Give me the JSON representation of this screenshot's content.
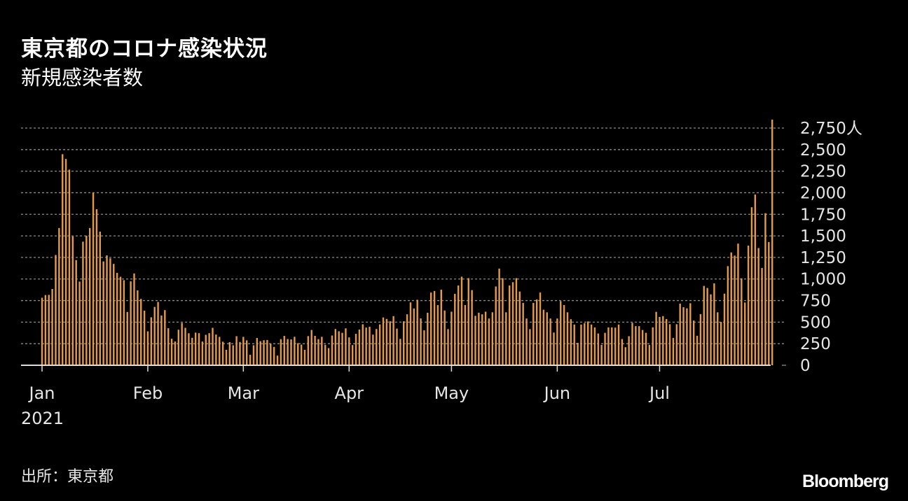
{
  "title": "東京都のコロナ感染状況",
  "subtitle": "新規感染者数",
  "source": "出所：東京都",
  "brand": "Bloomberg",
  "colors": {
    "bar": "#e39b48",
    "grid": "#8c8c8c",
    "axis": "#dddddd",
    "text": "#e6e6e6",
    "background": "#000000"
  },
  "chart_data": {
    "type": "bar",
    "start_date": "2021-01-01",
    "end_date": "2021-07-28",
    "year_label": "2021",
    "ylim": [
      0,
      2750
    ],
    "grid": true,
    "y_ticks": [
      {
        "value": 0,
        "label": "0"
      },
      {
        "value": 250,
        "label": "250"
      },
      {
        "value": 500,
        "label": "500"
      },
      {
        "value": 750,
        "label": "750"
      },
      {
        "value": 1000,
        "label": "1,000"
      },
      {
        "value": 1250,
        "label": "1,250"
      },
      {
        "value": 1500,
        "label": "1,500"
      },
      {
        "value": 1750,
        "label": "1,750"
      },
      {
        "value": 2000,
        "label": "2,000"
      },
      {
        "value": 2250,
        "label": "2,250"
      },
      {
        "value": 2500,
        "label": "2,500"
      },
      {
        "value": 2750,
        "label": "2,750人"
      }
    ],
    "x_ticks": [
      {
        "date": "2021-01-01",
        "label": "Jan"
      },
      {
        "date": "2021-02-01",
        "label": "Feb"
      },
      {
        "date": "2021-03-01",
        "label": "Mar"
      },
      {
        "date": "2021-04-01",
        "label": "Apr"
      },
      {
        "date": "2021-05-01",
        "label": "May"
      },
      {
        "date": "2021-06-01",
        "label": "Jun"
      },
      {
        "date": "2021-07-01",
        "label": "Jul"
      }
    ],
    "values": [
      783,
      814,
      816,
      884,
      1278,
      1591,
      2447,
      2392,
      2268,
      1494,
      1219,
      970,
      1433,
      1502,
      1591,
      1999,
      1809,
      1549,
      1204,
      1274,
      1240,
      1175,
      1071,
      1026,
      986,
      618,
      973,
      1064,
      868,
      769,
      633,
      393,
      556,
      676,
      734,
      577,
      639,
      429,
      307,
      276,
      412,
      491,
      434,
      371,
      318,
      378,
      372,
      275,
      353,
      372,
      434,
      356,
      329,
      273,
      179,
      268,
      232,
      337,
      270,
      329,
      289,
      121,
      232,
      316,
      279,
      290,
      293,
      250,
      213,
      112,
      303,
      340,
      304,
      300,
      330,
      256,
      239,
      179,
      338,
      409,
      341,
      303,
      330,
      237,
      199,
      345,
      420,
      394,
      376,
      428,
      323,
      234,
      364,
      414,
      475,
      437,
      446,
      355,
      420,
      474,
      554,
      537,
      510,
      570,
      425,
      306,
      510,
      591,
      729,
      658,
      759,
      543,
      405,
      609,
      843,
      861,
      698,
      876,
      635,
      419,
      621,
      828,
      925,
      1027,
      698,
      1010,
      871,
      573,
      609,
      591,
      621,
      542,
      614,
      913,
      1121,
      1010,
      614,
      925,
      963,
      1010,
      855,
      723,
      542,
      419,
      723,
      763,
      843,
      644,
      614,
      542,
      379,
      542,
      743,
      698,
      614,
      534,
      472,
      260,
      472,
      489,
      508,
      472,
      439,
      368,
      236,
      376,
      439,
      439,
      436,
      472,
      304,
      209,
      337,
      492,
      453,
      453,
      409,
      376,
      235,
      440,
      619,
      560,
      570,
      536,
      476,
      317,
      476,
      714,
      673,
      660,
      719,
      518,
      342,
      593,
      920,
      896,
      822,
      950,
      614,
      502,
      830,
      1149,
      1308,
      1271,
      1410,
      1008,
      727,
      1387,
      1832,
      1979,
      1359,
      1128,
      1763,
      1429,
      2848
    ]
  }
}
